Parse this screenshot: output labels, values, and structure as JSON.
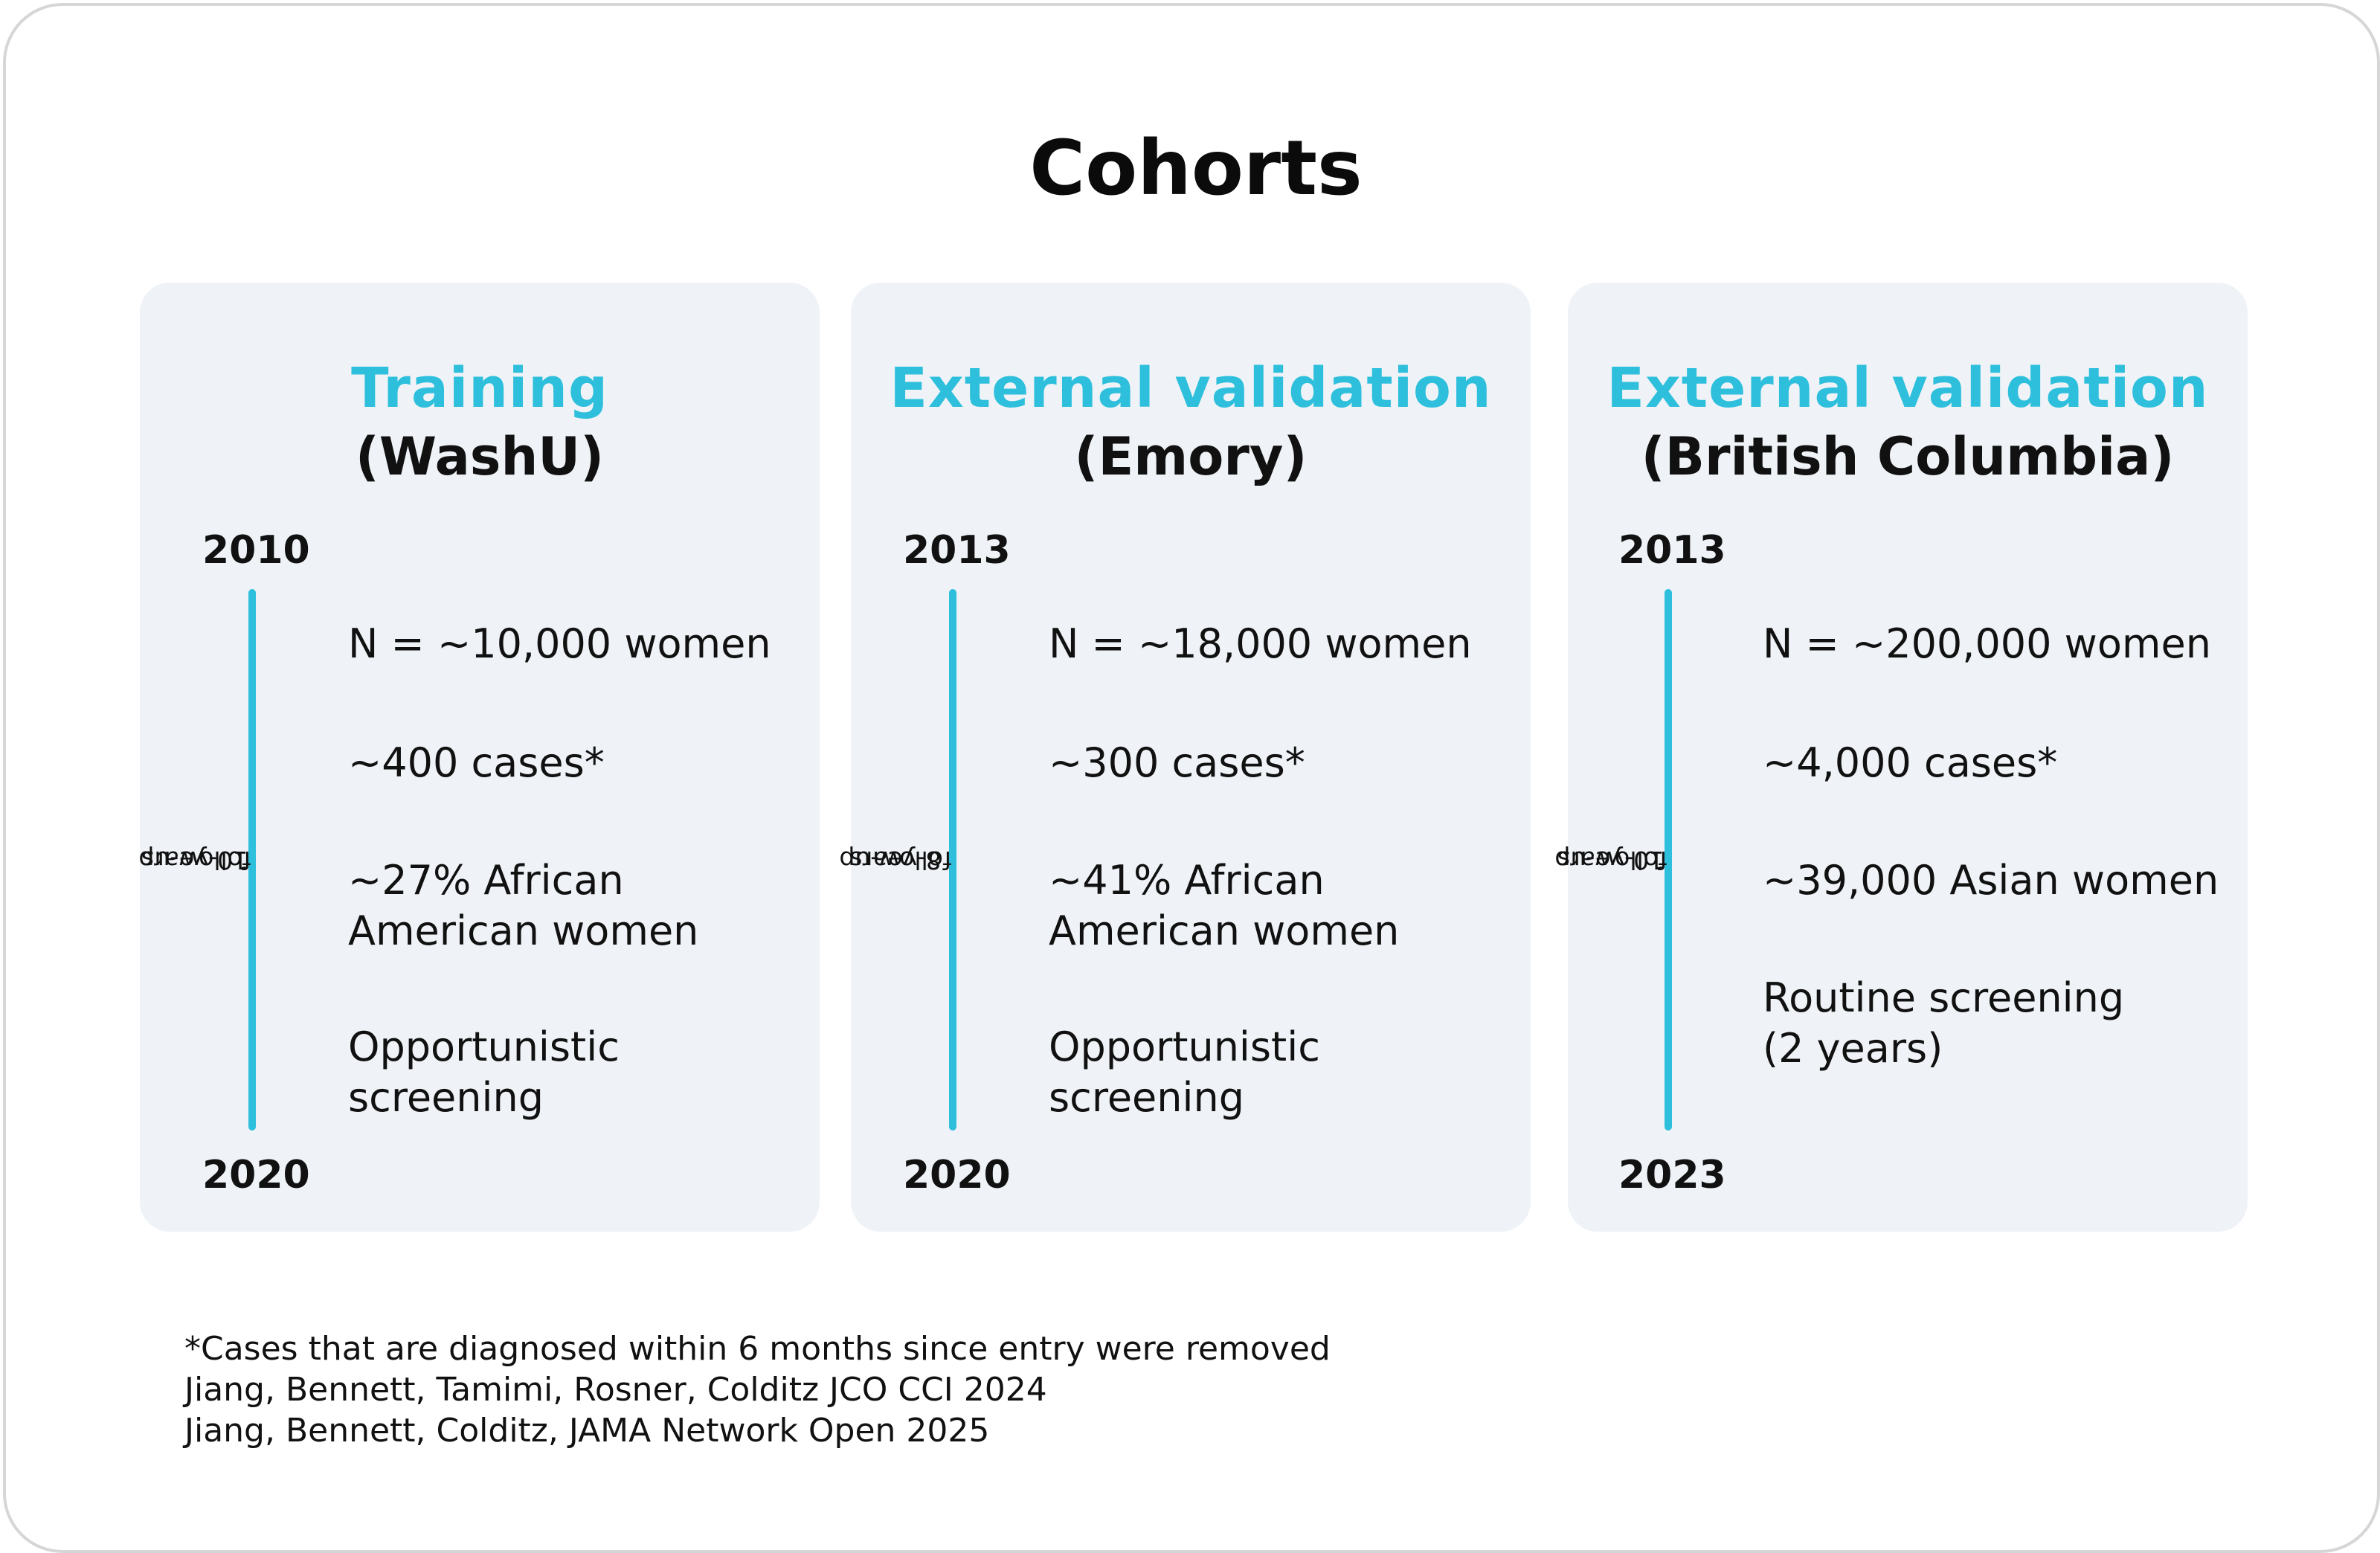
{
  "title": "Cohorts",
  "colors": {
    "accent": "#2ebfdc",
    "card_background": "#eff3f7",
    "text": "#111111"
  },
  "cohorts": [
    {
      "label": "Training",
      "site": "(WashU)",
      "start_year": "2010",
      "end_year": "2020",
      "follow_up_line1": "10-years",
      "follow_up_line2": "follow-up",
      "stats": {
        "n": "N = ~10,000 women",
        "cases": "~400 cases*",
        "population_line1": "~27% African",
        "population_line2": "American women",
        "screening_line1": "Opportunistic",
        "screening_line2": "screening"
      }
    },
    {
      "label": "External validation",
      "site": "(Emory)",
      "start_year": "2013",
      "end_year": "2020",
      "follow_up_line1": "8-years",
      "follow_up_line2": "follow-up",
      "stats": {
        "n": "N = ~18,000 women",
        "cases": "~300 cases*",
        "population_line1": "~41% African",
        "population_line2": "American women",
        "screening_line1": "Opportunistic",
        "screening_line2": "screening"
      }
    },
    {
      "label": "External validation",
      "site": "(British Columbia)",
      "start_year": "2013",
      "end_year": "2023",
      "follow_up_line1": "10-years",
      "follow_up_line2": "follow-up",
      "stats": {
        "n": "N = ~200,000 women",
        "cases": "~4,000 cases*",
        "population_line1": "~39,000 Asian women",
        "population_line2": "",
        "screening_line1": "Routine screening",
        "screening_line2": "(2 years)"
      }
    }
  ],
  "footnotes": {
    "note": "*Cases that are diagnosed within 6 months since entry were removed",
    "ref1": "Jiang, Bennett, Tamimi, Rosner, Colditz JCO CCI 2024",
    "ref2": "Jiang, Bennett, Colditz, JAMA Network Open 2025"
  }
}
